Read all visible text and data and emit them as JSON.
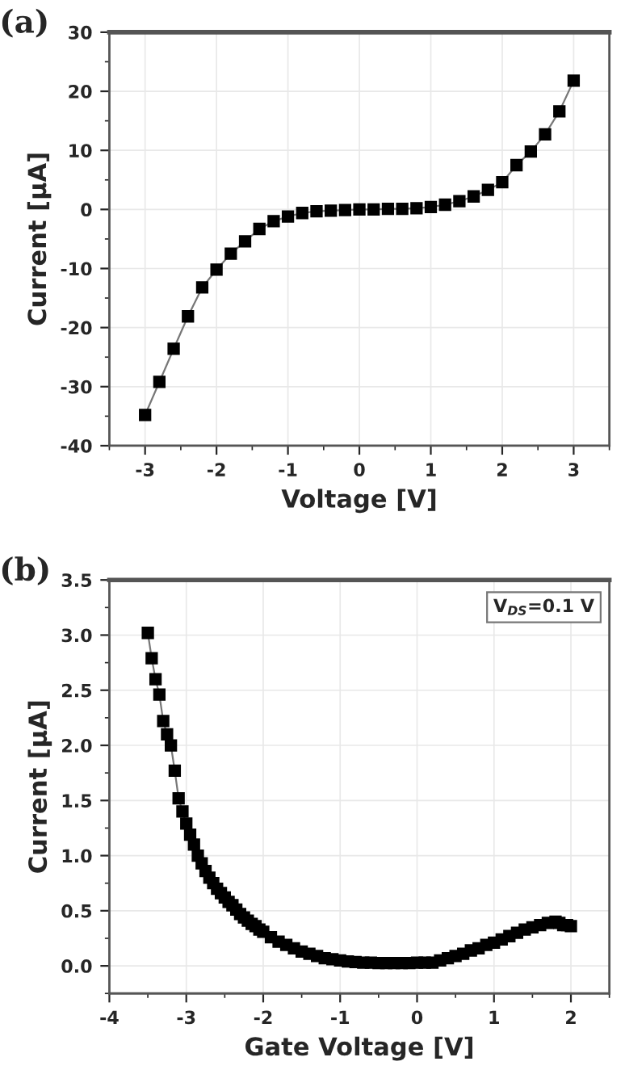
{
  "chart_data": [
    {
      "type": "line",
      "title": "(a)",
      "xlabel": "Voltage [V]",
      "ylabel": "Current [μA]",
      "xlim": [
        -3.5,
        3.5
      ],
      "xticks": [
        -3,
        -2,
        -1,
        0,
        1,
        2,
        3
      ],
      "ylim": [
        -40,
        30
      ],
      "yticks": [
        -40,
        -30,
        -20,
        -10,
        0,
        10,
        20,
        30
      ],
      "grid": true,
      "marker": "square",
      "line_style": "solid",
      "series": [
        {
          "color": "#000000",
          "x": [
            -3,
            -2.8,
            -2.6,
            -2.4,
            -2.2,
            -2,
            -1.8,
            -1.6,
            -1.4,
            -1.2,
            -1,
            -0.8,
            -0.6,
            -0.4,
            -0.2,
            0,
            0.2,
            0.4,
            0.6,
            0.8,
            1,
            1.2,
            1.4,
            1.6,
            1.8,
            2,
            2.2,
            2.4,
            2.6,
            2.8,
            3
          ],
          "values": [
            -34.8,
            -29.2,
            -23.6,
            -18.1,
            -13.2,
            -10.2,
            -7.5,
            -5.4,
            -3.3,
            -2.0,
            -1.2,
            -0.6,
            -0.3,
            -0.2,
            -0.1,
            0,
            0,
            0.1,
            0.1,
            0.2,
            0.4,
            0.8,
            1.4,
            2.2,
            3.3,
            4.6,
            7.5,
            9.8,
            12.7,
            16.6,
            21.8
          ]
        }
      ]
    },
    {
      "type": "line",
      "title": "(b)",
      "xlabel": "Gate Voltage [V]",
      "ylabel": "Current [μA]",
      "xlim": [
        -4,
        2.5
      ],
      "xticks": [
        -4,
        -3,
        -2,
        -1,
        0,
        1,
        2
      ],
      "ylim": [
        -0.25,
        3.5
      ],
      "yticks": [
        {
          "value": 0,
          "label": "0.0"
        },
        0.5,
        {
          "value": 1,
          "label": "1.0"
        },
        1.5,
        {
          "value": 2,
          "label": "2.0"
        },
        2.5,
        {
          "value": 3,
          "label": "3.0"
        },
        3.5
      ],
      "grid": true,
      "marker": "square",
      "line_style": "solid",
      "annotations": [
        "V$_{DS}$=0.1 V"
      ],
      "series": [
        {
          "color": "#000000",
          "x": [
            -3.5,
            -3.45,
            -3.4,
            -3.35,
            -3.3,
            -3.25,
            -3.2,
            -3.15,
            -3.1,
            -3.05,
            -3.0,
            -2.95,
            -2.9,
            -2.85,
            -2.8,
            -2.75,
            -2.7,
            -2.65,
            -2.6,
            -2.55,
            -2.5,
            -2.45,
            -2.4,
            -2.35,
            -2.3,
            -2.25,
            -2.2,
            -2.15,
            -2.1,
            -2.05,
            -2.0,
            -1.9,
            -1.8,
            -1.7,
            -1.6,
            -1.5,
            -1.4,
            -1.3,
            -1.2,
            -1.1,
            -1.0,
            -0.9,
            -0.8,
            -0.7,
            -0.6,
            -0.5,
            -0.4,
            -0.3,
            -0.2,
            -0.1,
            0,
            0.1,
            0.2,
            0.3,
            0.4,
            0.5,
            0.6,
            0.7,
            0.8,
            0.9,
            1.0,
            1.1,
            1.2,
            1.3,
            1.4,
            1.5,
            1.6,
            1.7,
            1.8,
            1.85,
            1.9,
            1.95,
            2.0
          ],
          "values": [
            3.02,
            2.79,
            2.6,
            2.46,
            2.22,
            2.1,
            2.0,
            1.77,
            1.52,
            1.4,
            1.29,
            1.19,
            1.1,
            1.0,
            0.93,
            0.86,
            0.8,
            0.75,
            0.7,
            0.66,
            0.62,
            0.58,
            0.55,
            0.51,
            0.47,
            0.44,
            0.41,
            0.38,
            0.36,
            0.33,
            0.31,
            0.26,
            0.22,
            0.19,
            0.16,
            0.13,
            0.11,
            0.09,
            0.07,
            0.06,
            0.05,
            0.04,
            0.035,
            0.03,
            0.03,
            0.025,
            0.025,
            0.025,
            0.025,
            0.025,
            0.03,
            0.03,
            0.03,
            0.05,
            0.07,
            0.09,
            0.11,
            0.14,
            0.16,
            0.19,
            0.21,
            0.24,
            0.27,
            0.3,
            0.33,
            0.35,
            0.37,
            0.39,
            0.4,
            0.39,
            0.37,
            0.37,
            0.36
          ]
        }
      ]
    }
  ]
}
